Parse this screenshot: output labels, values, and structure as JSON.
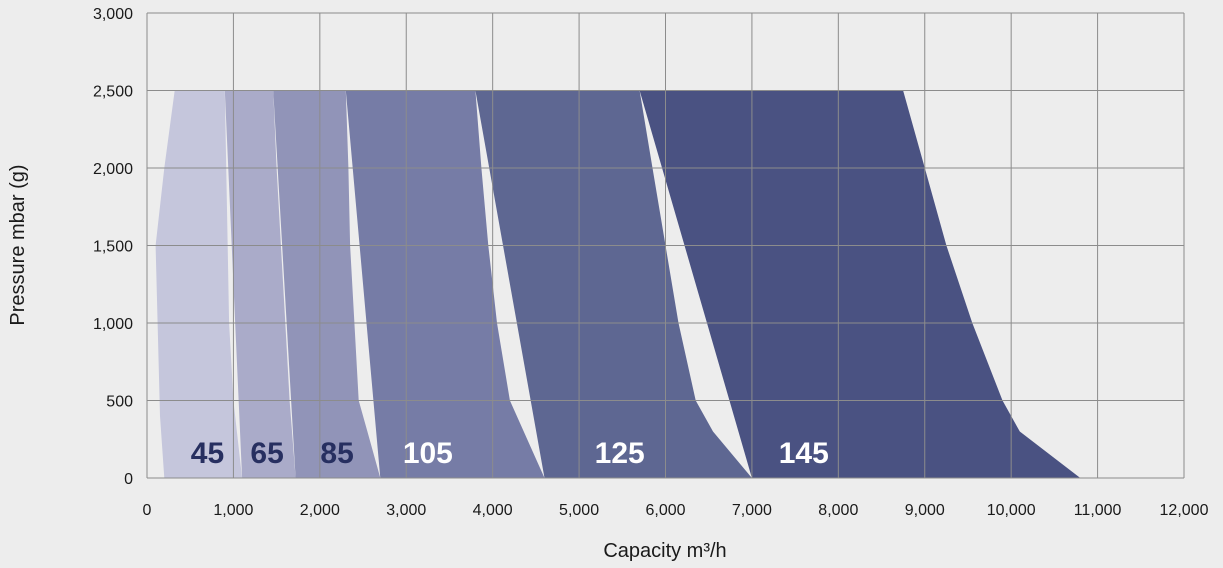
{
  "chart_data": {
    "type": "area",
    "title": "",
    "xlabel": "Capacity m³/h",
    "ylabel": "Pressure mbar (g)",
    "xlim": [
      0,
      12000
    ],
    "ylim": [
      0,
      3000
    ],
    "grid": true,
    "x_ticks": [
      "0",
      "1,000",
      "2,000",
      "3,000",
      "4,000",
      "5,000",
      "6,000",
      "7,000",
      "8,000",
      "9,000",
      "10,000",
      "11,000",
      "12,000"
    ],
    "y_ticks": [
      "0",
      "500",
      "1,000",
      "1,500",
      "2,000",
      "2,500",
      "3,000"
    ],
    "series": [
      {
        "name": "145",
        "color": "#4a5282",
        "label_color": "#ffffff",
        "label_x": 7600,
        "points": [
          [
            5700,
            2500
          ],
          [
            8750,
            2500
          ],
          [
            9000,
            2000
          ],
          [
            9250,
            1500
          ],
          [
            9550,
            1000
          ],
          [
            9900,
            500
          ],
          [
            10100,
            300
          ],
          [
            10800,
            0
          ],
          [
            7000,
            0
          ]
        ]
      },
      {
        "name": "125",
        "color": "#5e6792",
        "label_color": "#ffffff",
        "label_x": 5470,
        "points": [
          [
            3800,
            2500
          ],
          [
            5700,
            2500
          ],
          [
            5850,
            2000
          ],
          [
            6000,
            1500
          ],
          [
            6150,
            1000
          ],
          [
            6350,
            500
          ],
          [
            6550,
            300
          ],
          [
            7000,
            0
          ],
          [
            4600,
            0
          ]
        ]
      },
      {
        "name": "105",
        "color": "#767ca6",
        "label_color": "#ffffff",
        "label_x": 3250,
        "points": [
          [
            2300,
            2500
          ],
          [
            3800,
            2500
          ],
          [
            3870,
            2000
          ],
          [
            3950,
            1500
          ],
          [
            4050,
            1000
          ],
          [
            4200,
            500
          ],
          [
            4600,
            0
          ],
          [
            2700,
            0
          ]
        ]
      },
      {
        "name": "85",
        "color": "#9194b8",
        "label_color": "#272f60",
        "label_x": 2200,
        "points": [
          [
            1460,
            2500
          ],
          [
            2300,
            2500
          ],
          [
            2330,
            2000
          ],
          [
            2350,
            1500
          ],
          [
            2400,
            1000
          ],
          [
            2450,
            500
          ],
          [
            2550,
            300
          ],
          [
            2700,
            0
          ],
          [
            1720,
            0
          ]
        ]
      },
      {
        "name": "65",
        "color": "#aaabc9",
        "label_color": "#272f60",
        "label_x": 1390,
        "points": [
          [
            900,
            2500
          ],
          [
            1460,
            2500
          ],
          [
            1500,
            2000
          ],
          [
            1550,
            1500
          ],
          [
            1600,
            1000
          ],
          [
            1650,
            500
          ],
          [
            1720,
            0
          ],
          [
            1100,
            0
          ]
        ]
      },
      {
        "name": "45",
        "color": "#c5c6dc",
        "label_color": "#272f60",
        "label_x": 700,
        "points": [
          [
            320,
            2500
          ],
          [
            900,
            2500
          ],
          [
            950,
            1000
          ],
          [
            1000,
            500
          ],
          [
            1100,
            0
          ],
          [
            200,
            0
          ],
          [
            150,
            400
          ],
          [
            100,
            1500
          ],
          [
            200,
            2000
          ]
        ]
      }
    ]
  }
}
